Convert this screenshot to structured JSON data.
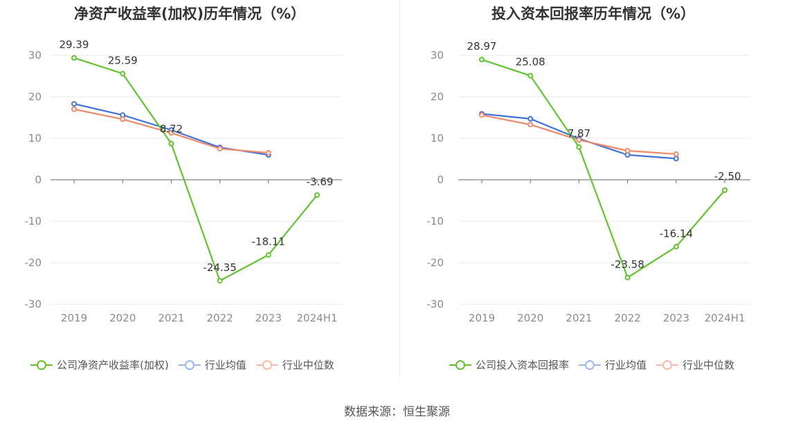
{
  "charts": [
    {
      "id": "roe",
      "title": "净资产收益率(加权)历年情况（%）",
      "legend": [
        "公司净资产收益率(加权)",
        "行业均值",
        "行业中位数"
      ]
    },
    {
      "id": "roic",
      "title": "投入资本回报率历年情况（%）",
      "legend": [
        "公司投入资本回报率",
        "行业均值",
        "行业中位数"
      ]
    }
  ],
  "source": "数据来源：恒生聚源",
  "colors": {
    "company": "#5ec42a",
    "industry_avg": "#3f73d9",
    "industry_median": "#f0896a",
    "grid": "#e4e8f2",
    "axis": "#666666",
    "tick_text": "#8a8a8a",
    "label_text": "#333333"
  },
  "chart_data": [
    {
      "type": "line",
      "title": "净资产收益率(加权)历年情况（%）",
      "categories": [
        "2019",
        "2020",
        "2021",
        "2022",
        "2023",
        "2024H1"
      ],
      "ylim": [
        -30,
        30
      ],
      "yticks": [
        -30,
        -20,
        -10,
        0,
        10,
        20,
        30
      ],
      "grid": true,
      "legend_position": "bottom",
      "series": [
        {
          "name": "公司净资产收益率(加权)",
          "key": "company",
          "values": [
            29.39,
            25.59,
            8.72,
            -24.35,
            -18.11,
            -3.69
          ],
          "labeled": true
        },
        {
          "name": "行业均值",
          "key": "industry_avg",
          "values": [
            18.3,
            15.6,
            12.0,
            7.8,
            6.0,
            null
          ],
          "labeled": false
        },
        {
          "name": "行业中位数",
          "key": "industry_median",
          "values": [
            17.0,
            14.6,
            11.3,
            7.5,
            6.5,
            null
          ],
          "labeled": false
        }
      ],
      "data_labels": [
        "29.39",
        "25.59",
        "8.72",
        "-24.35",
        "-18.11",
        "-3.69"
      ]
    },
    {
      "type": "line",
      "title": "投入资本回报率历年情况（%）",
      "categories": [
        "2019",
        "2020",
        "2021",
        "2022",
        "2023",
        "2024H1"
      ],
      "ylim": [
        -30,
        30
      ],
      "yticks": [
        -30,
        -20,
        -10,
        0,
        10,
        20,
        30
      ],
      "grid": true,
      "legend_position": "bottom",
      "series": [
        {
          "name": "公司投入资本回报率",
          "key": "company",
          "values": [
            28.97,
            25.08,
            7.87,
            -23.58,
            -16.14,
            -2.5
          ],
          "labeled": true
        },
        {
          "name": "行业均值",
          "key": "industry_avg",
          "values": [
            15.9,
            14.7,
            9.9,
            6.0,
            5.1,
            null
          ],
          "labeled": false
        },
        {
          "name": "行业中位数",
          "key": "industry_median",
          "values": [
            15.6,
            13.3,
            9.6,
            7.0,
            6.2,
            null
          ],
          "labeled": false
        }
      ],
      "data_labels": [
        "28.97",
        "25.08",
        "7.87",
        "-23.58",
        "-16.14",
        "-2.50"
      ]
    }
  ]
}
